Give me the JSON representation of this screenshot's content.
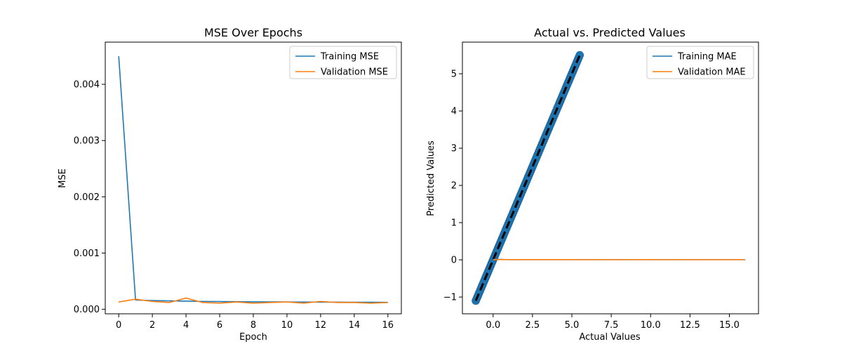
{
  "colors": {
    "series1": "#1f77b4",
    "series2": "#ff7f0e",
    "ideal": "#000000"
  },
  "chart_data": [
    {
      "type": "line",
      "title": "MSE Over Epochs",
      "xlabel": "Epoch",
      "ylabel": "MSE",
      "xlim": [
        -0.8,
        16.8
      ],
      "ylim": [
        -8e-05,
        0.00475
      ],
      "xticks": [
        0,
        2,
        4,
        6,
        8,
        10,
        12,
        14,
        16
      ],
      "yticks": [
        0.0,
        0.001,
        0.002,
        0.003,
        0.004
      ],
      "xtick_labels": [
        "0",
        "2",
        "4",
        "6",
        "8",
        "10",
        "12",
        "14",
        "16"
      ],
      "ytick_labels": [
        "0.000",
        "0.001",
        "0.002",
        "0.003",
        "0.004"
      ],
      "legend": "upper right",
      "grid": false,
      "x": [
        0,
        1,
        2,
        3,
        4,
        5,
        6,
        7,
        8,
        9,
        10,
        11,
        12,
        13,
        14,
        15,
        16
      ],
      "series": [
        {
          "name": "Training MSE",
          "color": "#1f77b4",
          "values": [
            0.0045,
            0.000165,
            0.000155,
            0.00015,
            0.000145,
            0.00014,
            0.000138,
            0.000135,
            0.000133,
            0.000131,
            0.00013,
            0.000129,
            0.000128,
            0.000127,
            0.000126,
            0.000125,
            0.000124
          ]
        },
        {
          "name": "Validation MSE",
          "color": "#ff7f0e",
          "values": [
            0.00013,
            0.00018,
            0.00014,
            0.00012,
            0.0002,
            0.00012,
            0.00011,
            0.00013,
            0.00011,
            0.00012,
            0.00013,
            0.00011,
            0.00014,
            0.00012,
            0.00012,
            0.00011,
            0.00012
          ]
        }
      ]
    },
    {
      "type": "line",
      "title": "Actual vs. Predicted Values",
      "xlabel": "Actual Values",
      "ylabel": "Predicted Values",
      "xlim": [
        -1.95,
        16.85
      ],
      "ylim": [
        -1.45,
        5.85
      ],
      "xticks": [
        0.0,
        2.5,
        5.0,
        7.5,
        10.0,
        12.5,
        15.0
      ],
      "yticks": [
        -1,
        0,
        1,
        2,
        3,
        4,
        5
      ],
      "xtick_labels": [
        "0.0",
        "2.5",
        "5.0",
        "7.5",
        "10.0",
        "12.5",
        "15.0"
      ],
      "ytick_labels": [
        "−1",
        "0",
        "1",
        "2",
        "3",
        "4",
        "5"
      ],
      "legend": "upper right",
      "grid": false,
      "scatter": {
        "color": "#1f77b4",
        "x_range": [
          -1.1,
          5.5
        ],
        "count": 120
      },
      "ideal_line": {
        "x": [
          -1.1,
          5.5
        ],
        "y": [
          -1.1,
          5.5
        ],
        "color": "#000000",
        "style": "dashed"
      },
      "series": [
        {
          "name": "Training MAE",
          "color": "#1f77b4",
          "x": [
            0,
            1,
            2,
            3,
            4,
            5,
            6,
            7,
            8,
            9,
            10,
            11,
            12,
            13,
            14,
            15,
            16
          ],
          "values": [
            0.0165,
            0.0067,
            0.0061,
            0.0058,
            0.0056,
            0.0055,
            0.0054,
            0.0053,
            0.0053,
            0.0052,
            0.0052,
            0.0051,
            0.0051,
            0.005,
            0.005,
            0.005,
            0.0049
          ]
        },
        {
          "name": "Validation MAE",
          "color": "#ff7f0e",
          "x": [
            0,
            1,
            2,
            3,
            4,
            5,
            6,
            7,
            8,
            9,
            10,
            11,
            12,
            13,
            14,
            15,
            16
          ],
          "values": [
            0.0055,
            0.0062,
            0.0058,
            0.0052,
            0.0068,
            0.0051,
            0.0049,
            0.0053,
            0.0049,
            0.0051,
            0.0053,
            0.0048,
            0.0056,
            0.005,
            0.005,
            0.0049,
            0.005
          ]
        }
      ]
    }
  ]
}
